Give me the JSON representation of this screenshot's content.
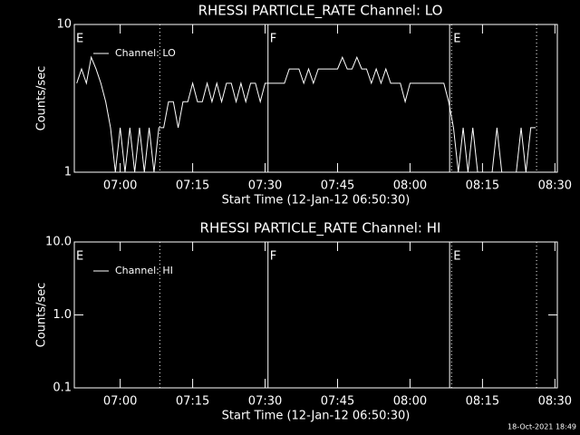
{
  "chart_data": [
    {
      "type": "line",
      "title": "RHESSI PARTICLE_RATE Channel: LO",
      "x_label": "Start Time (12-Jan-12 06:50:30)",
      "y_label": "Counts/sec",
      "log_y": true,
      "ylim": [
        1,
        10
      ],
      "yticks": [
        1,
        10
      ],
      "xlim": [
        410.5,
        510.5
      ],
      "xticks": [
        {
          "value": 420,
          "label": "07:00"
        },
        {
          "value": 435,
          "label": "07:15"
        },
        {
          "value": 450,
          "label": "07:30"
        },
        {
          "value": 465,
          "label": "07:45"
        },
        {
          "value": 480,
          "label": "08:00"
        },
        {
          "value": 495,
          "label": "08:15"
        },
        {
          "value": 510,
          "label": "08:30"
        }
      ],
      "legend": "upper left",
      "vlines": [
        {
          "value": 428.2,
          "style": "dotted"
        },
        {
          "value": 450.6,
          "style": "solid"
        },
        {
          "value": 488.2,
          "style": "solid"
        },
        {
          "value": 488.6,
          "style": "dotted"
        },
        {
          "value": 506.2,
          "style": "dotted"
        }
      ],
      "annotations": [
        {
          "x": 410.5,
          "label": "E"
        },
        {
          "x": 450.6,
          "label": "F"
        },
        {
          "x": 488.6,
          "label": "E"
        }
      ],
      "series": [
        {
          "name": "Channel: LO",
          "color": "#ffffff",
          "x": [
            411,
            412,
            413,
            414,
            415,
            416,
            417,
            418,
            419,
            420,
            421,
            422,
            423,
            424,
            425,
            426,
            427,
            428,
            429,
            430,
            431,
            432,
            433,
            434,
            435,
            436,
            437,
            438,
            439,
            440,
            441,
            442,
            443,
            444,
            445,
            446,
            447,
            448,
            449,
            450,
            451,
            452,
            453,
            454,
            455,
            456,
            457,
            458,
            459,
            460,
            461,
            462,
            463,
            464,
            465,
            466,
            467,
            468,
            469,
            470,
            471,
            472,
            473,
            474,
            475,
            476,
            477,
            478,
            479,
            480,
            481,
            482,
            483,
            484,
            485,
            486,
            487,
            488,
            489,
            490,
            491,
            492,
            493,
            494,
            495,
            496,
            497,
            498,
            499,
            500,
            501,
            502,
            503,
            504,
            505,
            506
          ],
          "values": [
            4,
            5,
            4,
            6,
            5,
            4,
            3,
            2,
            1,
            2,
            1,
            2,
            1,
            2,
            1,
            2,
            1,
            2,
            2,
            3,
            3,
            2,
            3,
            3,
            4,
            3,
            3,
            4,
            3,
            4,
            3,
            4,
            4,
            3,
            4,
            3,
            4,
            4,
            3,
            4,
            4,
            4,
            4,
            4,
            5,
            5,
            5,
            4,
            5,
            4,
            5,
            5,
            5,
            5,
            5,
            6,
            5,
            5,
            6,
            5,
            5,
            4,
            5,
            4,
            5,
            4,
            4,
            4,
            3,
            4,
            4,
            4,
            4,
            4,
            4,
            4,
            4,
            3,
            2,
            1,
            2,
            1,
            2,
            1,
            1,
            1,
            1,
            2,
            1,
            1,
            1,
            1,
            2,
            1,
            2,
            2
          ]
        }
      ]
    },
    {
      "type": "line",
      "title": "RHESSI PARTICLE_RATE Channel: HI",
      "x_label": "Start Time (12-Jan-12 06:50:30)",
      "y_label": "Counts/sec",
      "log_y": true,
      "ylim": [
        0.1,
        10
      ],
      "yticks": [
        0.1,
        {
          "value": 1,
          "label": "1.0"
        },
        {
          "value": 10,
          "label": "10.0"
        }
      ],
      "xlim": [
        410.5,
        510.5
      ],
      "xticks": [
        {
          "value": 420,
          "label": "07:00"
        },
        {
          "value": 435,
          "label": "07:15"
        },
        {
          "value": 450,
          "label": "07:30"
        },
        {
          "value": 465,
          "label": "07:45"
        },
        {
          "value": 480,
          "label": "08:00"
        },
        {
          "value": 495,
          "label": "08:15"
        },
        {
          "value": 510,
          "label": "08:30"
        }
      ],
      "legend": "upper left",
      "vlines": [
        {
          "value": 428.2,
          "style": "dotted"
        },
        {
          "value": 450.6,
          "style": "solid"
        },
        {
          "value": 488.2,
          "style": "solid"
        },
        {
          "value": 488.6,
          "style": "dotted"
        },
        {
          "value": 506.2,
          "style": "dotted"
        }
      ],
      "annotations": [
        {
          "x": 410.5,
          "label": "E"
        },
        {
          "x": 450.6,
          "label": "F"
        },
        {
          "x": 488.6,
          "label": "E"
        }
      ],
      "series": [
        {
          "name": "Channel: HI",
          "color": "#ffffff",
          "x": [],
          "values": []
        }
      ]
    }
  ],
  "footer": "18-Oct-2021 18:49"
}
